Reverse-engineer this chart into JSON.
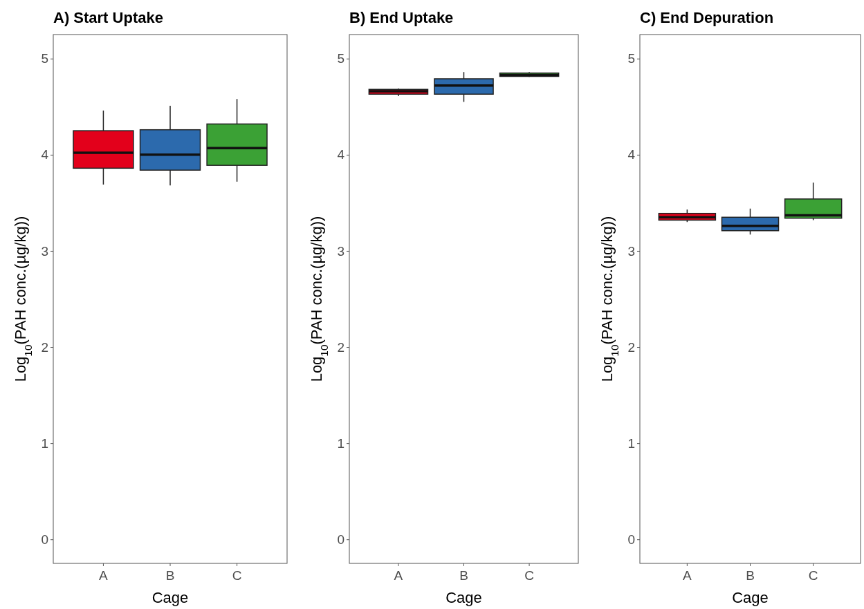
{
  "chart_data": [
    {
      "type": "box",
      "title": "A) Start Uptake",
      "xlabel": "Cage",
      "ylabel": "Log$_{10}$(PAH conc.(µg/kg))",
      "categories": [
        "A",
        "B",
        "C"
      ],
      "colors": [
        "#e3001b",
        "#2c6aad",
        "#3ba135"
      ],
      "ylim": [
        -0.25,
        5.25
      ],
      "yticks": [
        0,
        1,
        2,
        3,
        4,
        5
      ],
      "grid": false,
      "boxes": [
        {
          "low": 3.69,
          "q1": 3.86,
          "median": 4.02,
          "q3": 4.25,
          "high": 4.46
        },
        {
          "low": 3.68,
          "q1": 3.84,
          "median": 4.0,
          "q3": 4.26,
          "high": 4.51
        },
        {
          "low": 3.72,
          "q1": 3.89,
          "median": 4.07,
          "q3": 4.32,
          "high": 4.58
        }
      ]
    },
    {
      "type": "box",
      "title": "B) End Uptake",
      "xlabel": "Cage",
      "ylabel": "Log$_{10}$(PAH conc.(µg/kg))",
      "categories": [
        "A",
        "B",
        "C"
      ],
      "colors": [
        "#e3001b",
        "#2c6aad",
        "#3ba135"
      ],
      "ylim": [
        -0.25,
        5.25
      ],
      "yticks": [
        0,
        1,
        2,
        3,
        4,
        5
      ],
      "grid": false,
      "boxes": [
        {
          "low": 4.61,
          "q1": 4.63,
          "median": 4.66,
          "q3": 4.68,
          "high": 4.69
        },
        {
          "low": 4.55,
          "q1": 4.63,
          "median": 4.72,
          "q3": 4.79,
          "high": 4.86
        },
        {
          "low": 4.81,
          "q1": 4.815,
          "median": 4.83,
          "q3": 4.85,
          "high": 4.86
        }
      ]
    },
    {
      "type": "box",
      "title": "C) End Depuration",
      "xlabel": "Cage",
      "ylabel": "Log$_{10}$(PAH conc.(µg/kg))",
      "categories": [
        "A",
        "B",
        "C"
      ],
      "colors": [
        "#e3001b",
        "#2c6aad",
        "#3ba135"
      ],
      "ylim": [
        -0.25,
        5.25
      ],
      "yticks": [
        0,
        1,
        2,
        3,
        4,
        5
      ],
      "grid": false,
      "boxes": [
        {
          "low": 3.3,
          "q1": 3.32,
          "median": 3.35,
          "q3": 3.39,
          "high": 3.43
        },
        {
          "low": 3.17,
          "q1": 3.21,
          "median": 3.26,
          "q3": 3.35,
          "high": 3.44
        },
        {
          "low": 3.32,
          "q1": 3.34,
          "median": 3.37,
          "q3": 3.54,
          "high": 3.71
        }
      ]
    }
  ]
}
